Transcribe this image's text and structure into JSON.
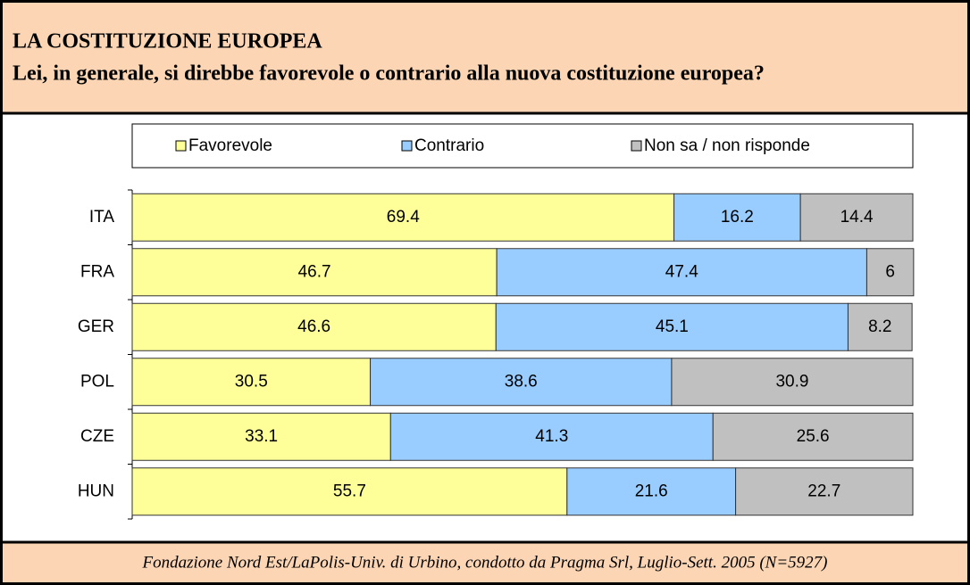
{
  "chart_data": {
    "type": "stacked-bar-horizontal",
    "title": "LA COSTITUZIONE EUROPEA",
    "subtitle": "Lei, in generale, si direbbe favorevole o contrario alla nuova costituzione europea?",
    "source": "Fondazione Nord Est/LaPolis-Univ. di Urbino, condotto da Pragma Srl, Luglio-Sett. 2005 (N=5927)",
    "categories": [
      "ITA",
      "FRA",
      "GER",
      "POL",
      "CZE",
      "HUN"
    ],
    "series": [
      {
        "name": "Favorevole",
        "color": "#ffff99",
        "values": [
          69.4,
          46.7,
          46.6,
          30.5,
          33.1,
          55.7
        ]
      },
      {
        "name": "Contrario",
        "color": "#99ccff",
        "values": [
          16.2,
          47.4,
          45.1,
          38.6,
          41.3,
          21.6
        ]
      },
      {
        "name": "Non sa / non risponde",
        "color": "#c0c0c0",
        "values": [
          14.4,
          6,
          8.2,
          30.9,
          25.6,
          22.7
        ]
      }
    ],
    "xlim": [
      0,
      100
    ],
    "legend": "top"
  }
}
